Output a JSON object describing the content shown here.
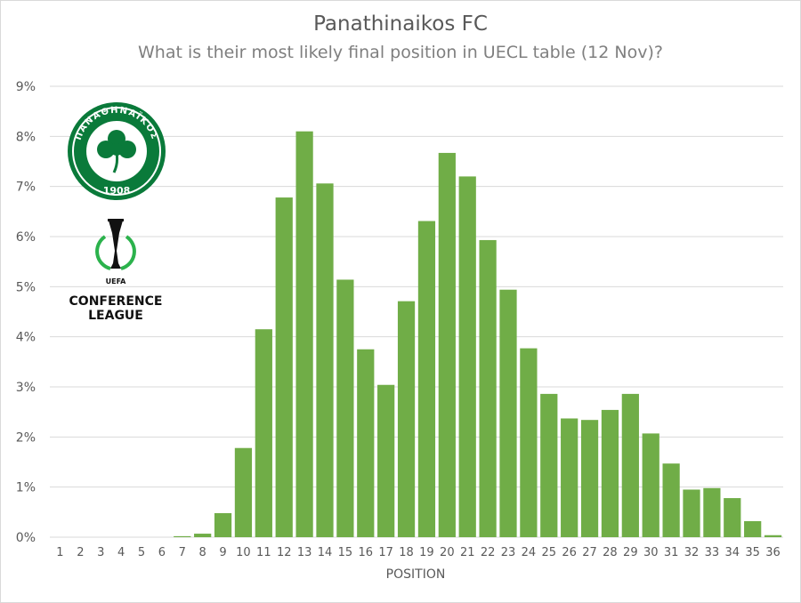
{
  "chart_data": {
    "type": "bar",
    "title": "Panathinaikos FC",
    "subtitle": "What is their most likely final position in UECL table (12 Nov)?",
    "xlabel": "POSITION",
    "ylabel": "",
    "ylim": [
      0,
      9
    ],
    "y_tick_labels": [
      "0%",
      "1%",
      "2%",
      "3%",
      "4%",
      "5%",
      "6%",
      "7%",
      "8%",
      "9%"
    ],
    "categories": [
      "1",
      "2",
      "3",
      "4",
      "5",
      "6",
      "7",
      "8",
      "9",
      "10",
      "11",
      "12",
      "13",
      "14",
      "15",
      "16",
      "17",
      "18",
      "19",
      "20",
      "21",
      "22",
      "23",
      "24",
      "25",
      "26",
      "27",
      "28",
      "29",
      "30",
      "31",
      "32",
      "33",
      "34",
      "35",
      "36"
    ],
    "values": [
      0,
      0,
      0,
      0,
      0,
      0,
      0.02,
      0.07,
      0.48,
      1.78,
      4.15,
      6.78,
      8.1,
      7.06,
      5.14,
      3.75,
      3.04,
      4.71,
      6.31,
      7.67,
      7.2,
      5.93,
      4.94,
      3.77,
      2.86,
      2.37,
      2.34,
      2.54,
      2.86,
      2.07,
      1.47,
      0.95,
      0.98,
      0.78,
      0.32,
      0.04
    ],
    "bar_color": "#70ad47",
    "grid": true,
    "legend": "none"
  },
  "logos": {
    "club_text": "ΠΑΝΑΘΗΝΑΪΚΟΣ",
    "club_year": "1908",
    "uefa_text": "UEFA",
    "conference_text": "CONFERENCE",
    "league_text": "LEAGUE"
  },
  "colors": {
    "club_green": "#0a7a3a",
    "grid": "#d9d9d9",
    "text": "#595959"
  }
}
